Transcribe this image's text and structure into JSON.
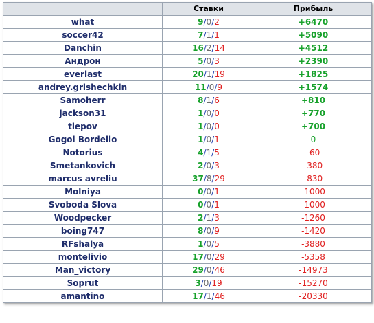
{
  "colors": {
    "win": "#17a12b",
    "loss": "#e02020",
    "name": "#1f2d6b",
    "header_bg": "#dfe3e8"
  },
  "headers": {
    "name": "",
    "bets": "Ставки",
    "profit": "Прибыль"
  },
  "rows": [
    {
      "name": "what",
      "w": "9",
      "d": "0",
      "l": "2",
      "profit": "+6470",
      "sign": "pos"
    },
    {
      "name": "soccer42",
      "w": "7",
      "d": "1",
      "l": "1",
      "profit": "+5090",
      "sign": "pos"
    },
    {
      "name": "Danchin",
      "w": "16",
      "d": "2",
      "l": "14",
      "profit": "+4512",
      "sign": "pos"
    },
    {
      "name": "Андрон",
      "w": "5",
      "d": "0",
      "l": "3",
      "profit": "+2390",
      "sign": "pos"
    },
    {
      "name": "everlast",
      "w": "20",
      "d": "1",
      "l": "19",
      "profit": "+1825",
      "sign": "pos"
    },
    {
      "name": "andrey.grishechkin",
      "w": "11",
      "d": "0",
      "l": "9",
      "profit": "+1574",
      "sign": "pos"
    },
    {
      "name": "Samoherr",
      "w": "8",
      "d": "1",
      "l": "6",
      "profit": "+810",
      "sign": "pos"
    },
    {
      "name": "jackson31",
      "w": "1",
      "d": "0",
      "l": "0",
      "profit": "+770",
      "sign": "pos"
    },
    {
      "name": "tlepov",
      "w": "1",
      "d": "0",
      "l": "0",
      "profit": "+700",
      "sign": "pos"
    },
    {
      "name": "Gogol Bordello",
      "w": "1",
      "d": "0",
      "l": "1",
      "profit": "0",
      "sign": "zero"
    },
    {
      "name": "Notorius",
      "w": "4",
      "d": "1",
      "l": "5",
      "profit": "-60",
      "sign": "neg"
    },
    {
      "name": "Smetankovich",
      "w": "2",
      "d": "0",
      "l": "3",
      "profit": "-380",
      "sign": "neg"
    },
    {
      "name": "marcus avreliu",
      "w": "37",
      "d": "8",
      "l": "29",
      "profit": "-830",
      "sign": "neg"
    },
    {
      "name": "Molniya",
      "w": "0",
      "d": "0",
      "l": "1",
      "profit": "-1000",
      "sign": "neg"
    },
    {
      "name": "Svoboda Slova",
      "w": "0",
      "d": "0",
      "l": "1",
      "profit": "-1000",
      "sign": "neg"
    },
    {
      "name": "Woodpecker",
      "w": "2",
      "d": "1",
      "l": "3",
      "profit": "-1260",
      "sign": "neg"
    },
    {
      "name": "boing747",
      "w": "8",
      "d": "0",
      "l": "9",
      "profit": "-1420",
      "sign": "neg"
    },
    {
      "name": "RFshalya",
      "w": "1",
      "d": "0",
      "l": "5",
      "profit": "-3880",
      "sign": "neg"
    },
    {
      "name": "montelivio",
      "w": "17",
      "d": "0",
      "l": "29",
      "profit": "-5358",
      "sign": "neg"
    },
    {
      "name": "Man_victory",
      "w": "29",
      "d": "0",
      "l": "46",
      "profit": "-14973",
      "sign": "neg"
    },
    {
      "name": "Soprut",
      "w": "3",
      "d": "0",
      "l": "19",
      "profit": "-15270",
      "sign": "neg"
    },
    {
      "name": "amantino",
      "w": "17",
      "d": "1",
      "l": "46",
      "profit": "-20330",
      "sign": "neg"
    }
  ]
}
